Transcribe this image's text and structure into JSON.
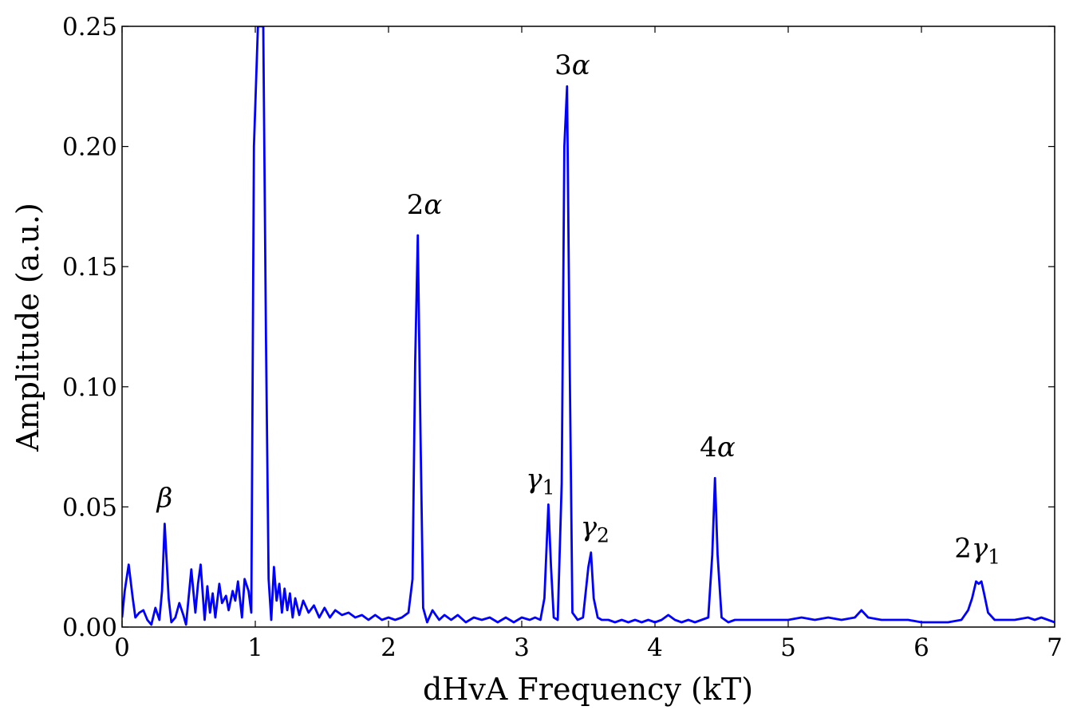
{
  "chart_data": {
    "type": "line",
    "xlabel": "dHvA Frequency (kT)",
    "ylabel": "Amplitude (a.u.)",
    "xlim": [
      0,
      7
    ],
    "ylim": [
      0,
      0.25
    ],
    "x_ticks": [
      "0",
      "1",
      "2",
      "3",
      "4",
      "5",
      "6",
      "7"
    ],
    "y_ticks": [
      "0.00",
      "0.05",
      "0.10",
      "0.15",
      "0.20",
      "0.25"
    ],
    "grid": false,
    "legend": "none",
    "line_color": "#0000ff",
    "series": [
      {
        "x": [
          0.0,
          0.02,
          0.05,
          0.08,
          0.1,
          0.13,
          0.16,
          0.19,
          0.22,
          0.25,
          0.28,
          0.3,
          0.32,
          0.35,
          0.37,
          0.4,
          0.43,
          0.46,
          0.48,
          0.52,
          0.55,
          0.57,
          0.59,
          0.62,
          0.64,
          0.66,
          0.68,
          0.7,
          0.73,
          0.75,
          0.78,
          0.8,
          0.83,
          0.85,
          0.87,
          0.9,
          0.92,
          0.95,
          0.97,
          0.99,
          1.02,
          1.04,
          1.06,
          1.08,
          1.1,
          1.12,
          1.14,
          1.16,
          1.18,
          1.2,
          1.22,
          1.24,
          1.26,
          1.28,
          1.3,
          1.33,
          1.36,
          1.4,
          1.44,
          1.48,
          1.52,
          1.56,
          1.6,
          1.65,
          1.7,
          1.75,
          1.8,
          1.85,
          1.9,
          1.95,
          2.0,
          2.05,
          2.1,
          2.15,
          2.18,
          2.2,
          2.22,
          2.24,
          2.26,
          2.29,
          2.33,
          2.38,
          2.42,
          2.47,
          2.52,
          2.58,
          2.64,
          2.7,
          2.76,
          2.82,
          2.88,
          2.94,
          3.0,
          3.06,
          3.1,
          3.14,
          3.17,
          3.2,
          3.22,
          3.24,
          3.27,
          3.3,
          3.32,
          3.34,
          3.36,
          3.38,
          3.42,
          3.46,
          3.5,
          3.52,
          3.54,
          3.57,
          3.6,
          3.65,
          3.7,
          3.75,
          3.8,
          3.85,
          3.9,
          3.95,
          4.0,
          4.05,
          4.1,
          4.15,
          4.2,
          4.25,
          4.3,
          4.35,
          4.4,
          4.43,
          4.45,
          4.47,
          4.5,
          4.55,
          4.6,
          4.7,
          4.8,
          4.9,
          5.0,
          5.1,
          5.2,
          5.3,
          5.4,
          5.5,
          5.55,
          5.6,
          5.7,
          5.8,
          5.9,
          6.0,
          6.1,
          6.2,
          6.3,
          6.35,
          6.38,
          6.41,
          6.43,
          6.45,
          6.47,
          6.5,
          6.55,
          6.6,
          6.7,
          6.8,
          6.85,
          6.9,
          6.95,
          7.0
        ],
        "y": [
          0.004,
          0.015,
          0.026,
          0.012,
          0.004,
          0.006,
          0.007,
          0.003,
          0.001,
          0.008,
          0.003,
          0.015,
          0.043,
          0.012,
          0.002,
          0.004,
          0.01,
          0.005,
          0.001,
          0.024,
          0.006,
          0.018,
          0.026,
          0.003,
          0.017,
          0.006,
          0.014,
          0.004,
          0.018,
          0.01,
          0.013,
          0.007,
          0.015,
          0.011,
          0.019,
          0.004,
          0.02,
          0.015,
          0.006,
          0.2,
          0.25,
          0.25,
          0.25,
          0.12,
          0.02,
          0.003,
          0.025,
          0.011,
          0.018,
          0.006,
          0.016,
          0.007,
          0.014,
          0.004,
          0.012,
          0.005,
          0.011,
          0.006,
          0.009,
          0.004,
          0.008,
          0.004,
          0.007,
          0.005,
          0.006,
          0.004,
          0.005,
          0.003,
          0.005,
          0.003,
          0.004,
          0.003,
          0.004,
          0.006,
          0.02,
          0.11,
          0.163,
          0.08,
          0.008,
          0.002,
          0.007,
          0.003,
          0.005,
          0.003,
          0.005,
          0.002,
          0.004,
          0.003,
          0.004,
          0.002,
          0.004,
          0.002,
          0.004,
          0.003,
          0.004,
          0.003,
          0.012,
          0.051,
          0.025,
          0.004,
          0.003,
          0.06,
          0.2,
          0.225,
          0.11,
          0.006,
          0.003,
          0.004,
          0.025,
          0.031,
          0.012,
          0.004,
          0.003,
          0.003,
          0.002,
          0.003,
          0.002,
          0.003,
          0.002,
          0.003,
          0.002,
          0.003,
          0.005,
          0.003,
          0.002,
          0.003,
          0.002,
          0.003,
          0.004,
          0.03,
          0.062,
          0.03,
          0.004,
          0.002,
          0.003,
          0.003,
          0.003,
          0.003,
          0.003,
          0.004,
          0.003,
          0.004,
          0.003,
          0.004,
          0.007,
          0.004,
          0.003,
          0.003,
          0.003,
          0.002,
          0.002,
          0.002,
          0.003,
          0.007,
          0.012,
          0.019,
          0.018,
          0.019,
          0.014,
          0.006,
          0.003,
          0.003,
          0.003,
          0.004,
          0.003,
          0.004,
          0.003,
          0.002
        ]
      }
    ],
    "annotations": [
      {
        "parts": [
          {
            "t": "β",
            "style": "it"
          }
        ],
        "x": 0.32,
        "y": 0.05
      },
      {
        "parts": [
          {
            "t": "2",
            "style": "n"
          },
          {
            "t": "α",
            "style": "it"
          }
        ],
        "x": 2.27,
        "y": 0.172
      },
      {
        "parts": [
          {
            "t": "3",
            "style": "n"
          },
          {
            "t": "α",
            "style": "it"
          }
        ],
        "x": 3.38,
        "y": 0.23
      },
      {
        "parts": [
          {
            "t": "γ",
            "style": "it"
          },
          {
            "t": "1",
            "style": "sub"
          }
        ],
        "x": 3.14,
        "y": 0.058
      },
      {
        "parts": [
          {
            "t": "γ",
            "style": "it"
          },
          {
            "t": "2",
            "style": "sub"
          }
        ],
        "x": 3.55,
        "y": 0.038
      },
      {
        "parts": [
          {
            "t": "4",
            "style": "n"
          },
          {
            "t": "α",
            "style": "it"
          }
        ],
        "x": 4.47,
        "y": 0.071
      },
      {
        "parts": [
          {
            "t": "2",
            "style": "n"
          },
          {
            "t": "γ",
            "style": "it"
          },
          {
            "t": "1",
            "style": "sub"
          }
        ],
        "x": 6.42,
        "y": 0.029
      }
    ]
  }
}
